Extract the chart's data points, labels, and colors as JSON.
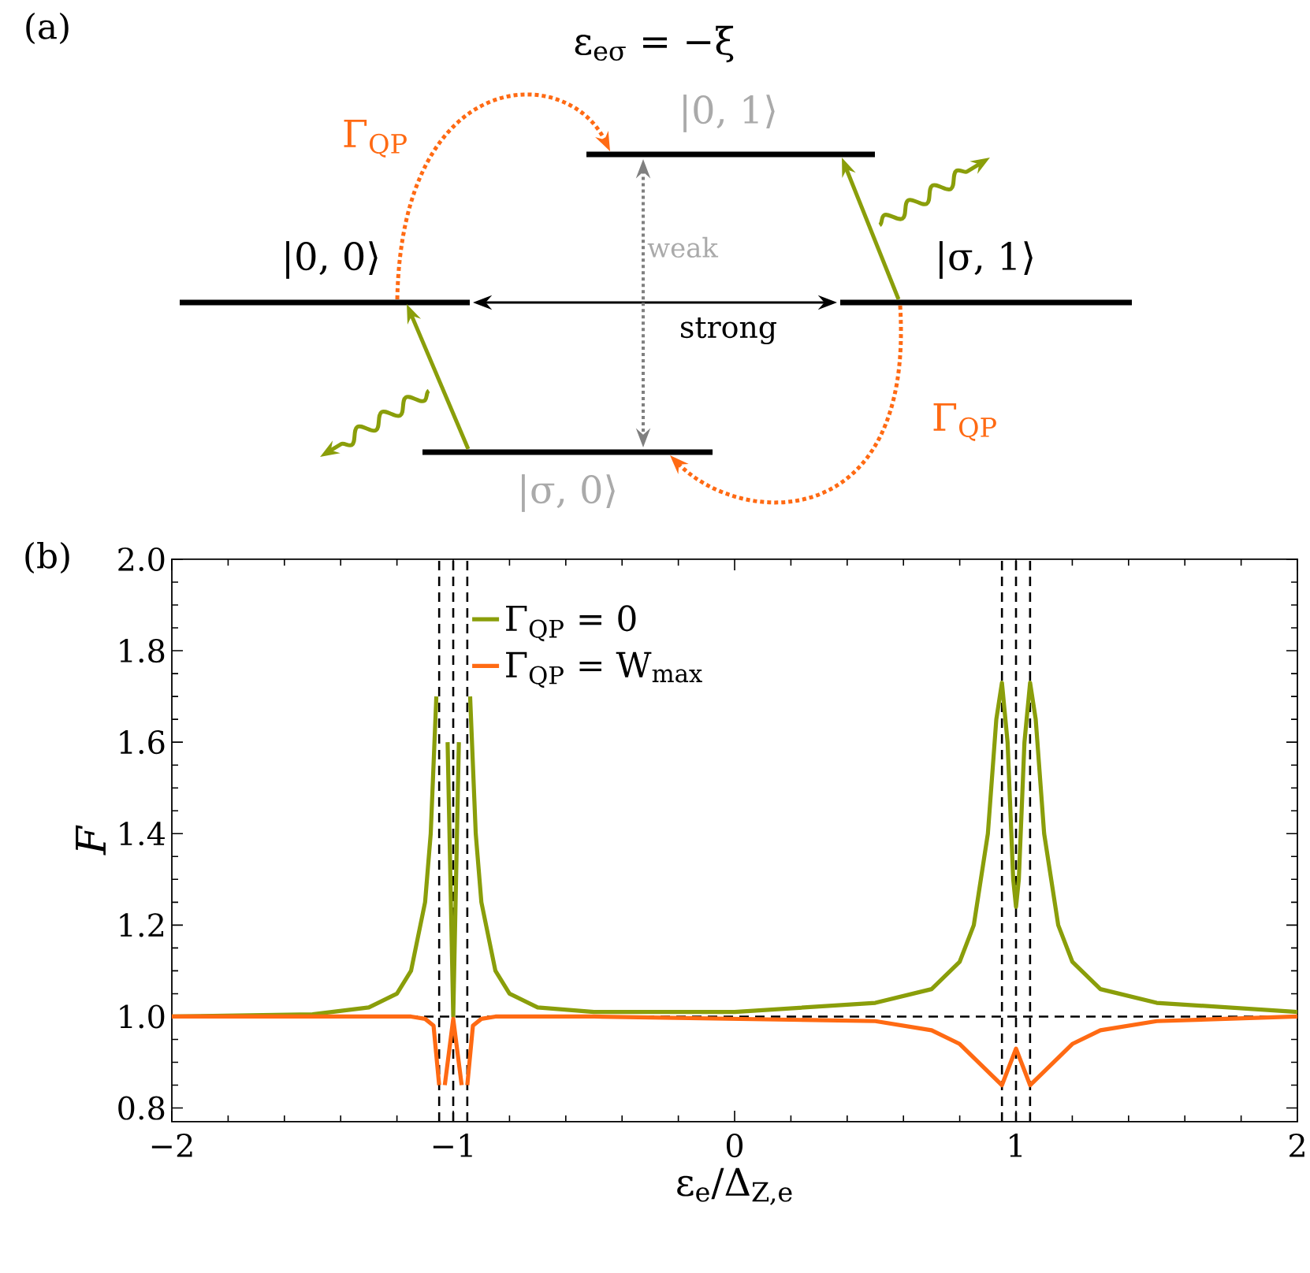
{
  "chart_data": [
    {
      "type": "other",
      "annotations": [
        "(a)",
        "ε$_{eσ}$ = −ξ",
        "|0, 1⟩",
        "|0, 0⟩",
        "|σ, 1⟩",
        "|σ, 0⟩",
        "Γ$_{QP}$",
        "Γ$_{QP}$",
        "weak",
        "strong"
      ]
    },
    {
      "type": "line",
      "xlabel": "ε$_{e}$/Δ$_{Z,e}$",
      "ylabel": "F",
      "annotations": [
        "(b)"
      ],
      "xlim": [
        -2,
        2
      ],
      "ylim": [
        0.77,
        2.0
      ],
      "xticks": [
        {
          "value": -2,
          "label": "−2"
        },
        {
          "value": -1,
          "label": "−1"
        },
        0,
        1,
        2
      ],
      "yticks": [
        {
          "value": 0.8,
          "label": "0.8"
        },
        {
          "value": 1.0,
          "label": "1.0"
        },
        {
          "value": 1.2,
          "label": "1.2"
        },
        {
          "value": 1.4,
          "label": "1.4"
        },
        {
          "value": 1.6,
          "label": "1.6"
        },
        {
          "value": 1.8,
          "label": "1.8"
        },
        {
          "value": 2.0,
          "label": "2.0"
        }
      ],
      "grid": false,
      "legend": "top",
      "marker": "none",
      "line_style": "solid",
      "ref_lines": [
        {
          "axis": "x",
          "value": -1.05,
          "line_style": "dashed",
          "color": "#000000"
        },
        {
          "axis": "x",
          "value": -1.0,
          "line_style": "dashed",
          "color": "#000000"
        },
        {
          "axis": "x",
          "value": -0.95,
          "line_style": "dashed",
          "color": "#000000"
        },
        {
          "axis": "x",
          "value": 0.95,
          "line_style": "dashed",
          "color": "#000000"
        },
        {
          "axis": "x",
          "value": 1.0,
          "line_style": "dashed",
          "color": "#000000"
        },
        {
          "axis": "x",
          "value": 1.05,
          "line_style": "dashed",
          "color": "#000000"
        },
        {
          "axis": "y",
          "value": 1.0,
          "line_style": "dashed",
          "color": "#000000"
        }
      ],
      "series": [
        {
          "name": "Γ$_{QP}$ = 0",
          "color": "#8a9e0a",
          "x": [
            -2,
            -1.5,
            -1.3,
            -1.2,
            -1.15,
            -1.1,
            -1.08,
            -1.06,
            -1.045,
            -1.04,
            -1.02,
            -1.0,
            -0.98,
            -0.96,
            -0.955,
            -0.94,
            -0.92,
            -0.9,
            -0.85,
            -0.8,
            -0.7,
            -0.5,
            0,
            0.5,
            0.7,
            0.8,
            0.85,
            0.9,
            0.93,
            0.95,
            0.97,
            0.99,
            1.0,
            1.01,
            1.03,
            1.05,
            1.07,
            1.1,
            1.15,
            1.2,
            1.3,
            1.5,
            2
          ],
          "values": [
            1.0,
            1.005,
            1.02,
            1.05,
            1.1,
            1.25,
            1.4,
            1.7,
            null,
            null,
            1.6,
            1.0,
            1.6,
            null,
            null,
            1.7,
            1.4,
            1.25,
            1.1,
            1.05,
            1.02,
            1.01,
            1.01,
            1.03,
            1.06,
            1.12,
            1.2,
            1.4,
            1.65,
            1.73,
            1.6,
            1.3,
            1.24,
            1.3,
            1.6,
            1.73,
            1.65,
            1.4,
            1.2,
            1.12,
            1.06,
            1.03,
            1.01
          ]
        },
        {
          "name": "Γ$_{QP}$ = W$_{max}$",
          "color": "#ff6a13",
          "x": [
            -2,
            -1.15,
            -1.1,
            -1.07,
            -1.05,
            -1.04,
            -1.03,
            -1.0,
            -0.97,
            -0.96,
            -0.95,
            -0.93,
            -0.9,
            -0.85,
            -0.5,
            0.5,
            0.7,
            0.8,
            0.9,
            0.95,
            1.0,
            1.05,
            1.1,
            1.2,
            1.3,
            1.5,
            2
          ],
          "values": [
            1.0,
            1.0,
            0.995,
            0.98,
            0.85,
            null,
            0.85,
            0.995,
            0.85,
            null,
            0.85,
            0.98,
            0.995,
            1.0,
            1.0,
            0.99,
            0.97,
            0.94,
            0.88,
            0.85,
            0.93,
            0.85,
            0.88,
            0.94,
            0.97,
            0.99,
            1.0
          ]
        }
      ]
    }
  ]
}
